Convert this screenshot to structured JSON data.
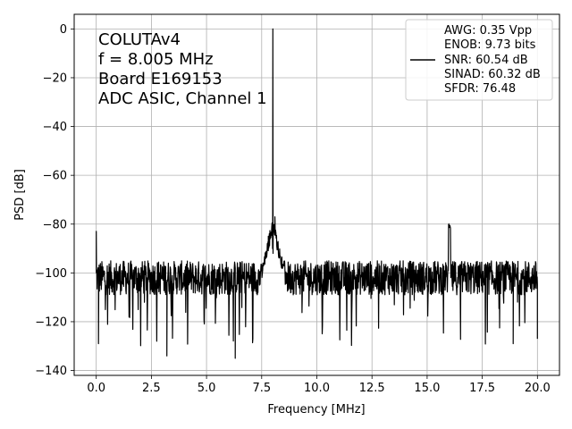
{
  "chart_data": {
    "type": "line",
    "xlabel": "Frequency [MHz]",
    "ylabel": "PSD [dB]",
    "xlim": [
      -1.0,
      21.0
    ],
    "ylim": [
      -142,
      6
    ],
    "xticks": [
      0.0,
      2.5,
      5.0,
      7.5,
      10.0,
      12.5,
      15.0,
      17.5,
      20.0
    ],
    "xtick_labels": [
      "0.0",
      "2.5",
      "5.0",
      "7.5",
      "10.0",
      "12.5",
      "15.0",
      "17.5",
      "20.0"
    ],
    "yticks": [
      0,
      -20,
      -40,
      -60,
      -80,
      -100,
      -120,
      -140
    ],
    "ytick_labels": [
      "0",
      "−20",
      "−40",
      "−60",
      "−80",
      "−100",
      "−120",
      "−140"
    ],
    "grid": true,
    "annotation_lines": [
      "COLUTAv4",
      "f = 8.005 MHz",
      "Board E169153",
      "ADC ASIC, Channel 1"
    ],
    "legend_position": "top-right",
    "legend_lines": [
      "AWG: 0.35 Vpp",
      "ENOB: 9.73 bits",
      "SNR: 60.54 dB",
      "SINAD: 60.32 dB",
      "SFDR: 76.48"
    ],
    "line_color": "#000000",
    "series": [
      {
        "fundamental": {
          "x": 8.005,
          "y": 0
        },
        "spur": {
          "x": 16.01,
          "y": -82
        },
        "noise_floor": {
          "median": -102,
          "min": -135,
          "max": -85
        },
        "x_range": [
          0.0,
          20.0
        ],
        "notable_points": [
          {
            "x": 0.0,
            "y": -83
          },
          {
            "x": 0.1,
            "y": -129
          },
          {
            "x": 3.2,
            "y": -134
          },
          {
            "x": 6.3,
            "y": -135
          },
          {
            "x": 8.1,
            "y": -77
          },
          {
            "x": 7.8,
            "y": -85
          },
          {
            "x": 18.9,
            "y": -129
          },
          {
            "x": 20.0,
            "y": -127
          }
        ]
      }
    ]
  }
}
